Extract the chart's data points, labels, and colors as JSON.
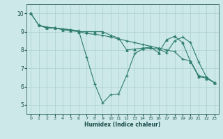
{
  "xlabel": "Humidex (Indice chaleur)",
  "xlim": [
    -0.5,
    23.5
  ],
  "ylim": [
    4.5,
    10.5
  ],
  "xticks": [
    0,
    1,
    2,
    3,
    4,
    5,
    6,
    7,
    8,
    9,
    10,
    11,
    12,
    13,
    14,
    15,
    16,
    17,
    18,
    19,
    20,
    21,
    22,
    23
  ],
  "yticks": [
    5,
    6,
    7,
    8,
    9,
    10
  ],
  "background_color": "#cce8e8",
  "grid_color": "#aacfcf",
  "line_color": "#2e7d6e",
  "line1": {
    "x": [
      0,
      1,
      2,
      3,
      4,
      5,
      6,
      7,
      8,
      9,
      10,
      11,
      12,
      13,
      14,
      15,
      16,
      17,
      18,
      19,
      20,
      21,
      22,
      23
    ],
    "y": [
      10.0,
      9.35,
      9.2,
      9.2,
      9.15,
      9.1,
      9.05,
      7.6,
      6.15,
      5.1,
      5.55,
      5.6,
      6.6,
      7.8,
      8.05,
      8.1,
      8.05,
      7.85,
      8.5,
      8.7,
      8.4,
      7.35,
      6.5,
      6.2
    ]
  },
  "line2": {
    "x": [
      1,
      2,
      3,
      4,
      5,
      6,
      7,
      8,
      9,
      10,
      11,
      12,
      13,
      14,
      15,
      16,
      17,
      18,
      19,
      20,
      21,
      22,
      23
    ],
    "y": [
      9.35,
      9.25,
      9.2,
      9.15,
      9.1,
      9.0,
      8.9,
      8.85,
      8.8,
      8.7,
      8.6,
      8.5,
      8.4,
      8.3,
      8.2,
      8.1,
      8.0,
      7.9,
      7.5,
      7.4,
      6.6,
      6.5,
      6.2
    ]
  },
  "line3": {
    "x": [
      0,
      1,
      2,
      3,
      4,
      5,
      6,
      7,
      8,
      9,
      10,
      11,
      12,
      13,
      14,
      15,
      16,
      17,
      18,
      19,
      20,
      21,
      22,
      23
    ],
    "y": [
      10.0,
      9.35,
      9.2,
      9.2,
      9.1,
      9.05,
      9.0,
      9.0,
      9.0,
      9.0,
      8.8,
      8.65,
      8.0,
      8.05,
      8.1,
      8.15,
      7.85,
      8.55,
      8.75,
      8.4,
      7.35,
      6.55,
      6.45,
      6.2
    ]
  }
}
